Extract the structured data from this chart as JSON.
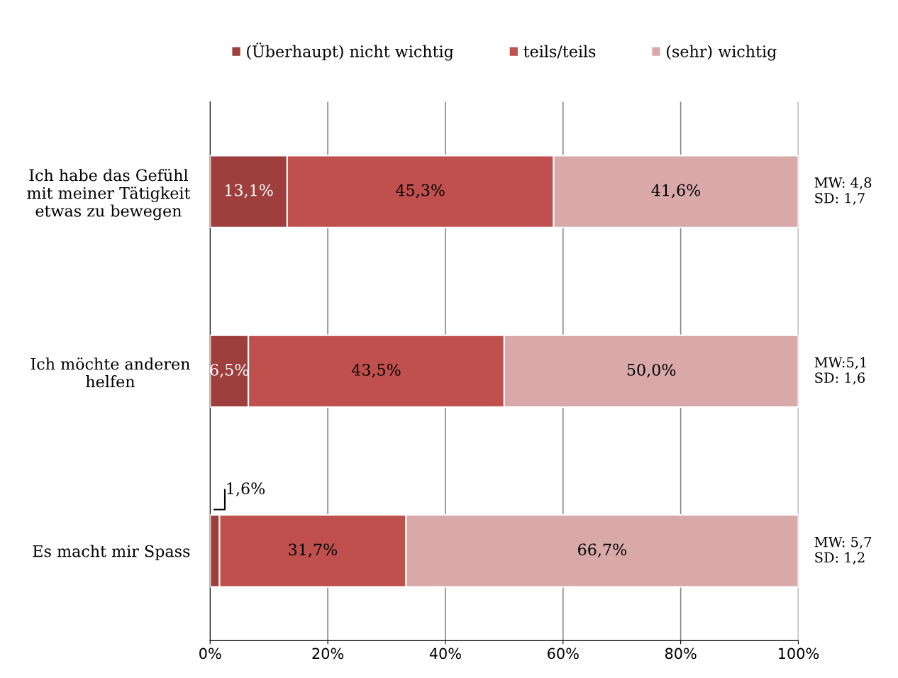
{
  "chart_data": {
    "type": "bar",
    "orientation": "horizontal",
    "stacked": true,
    "categories": [
      "Ich habe das Gefühl\nmit meiner Tätigkeit\netwas zu bewegen",
      "Ich möchte anderen\nhelfen",
      "Es macht mir Spass"
    ],
    "series": [
      {
        "name": "(Überhaupt) nicht wichtig",
        "color": "#9e3f3e",
        "values": [
          13.1,
          6.5,
          1.6
        ],
        "value_labels": [
          "13,1%",
          "6,5%",
          "1,6%"
        ]
      },
      {
        "name": "teils/teils",
        "color": "#c0504d",
        "values": [
          45.3,
          43.5,
          31.7
        ],
        "value_labels": [
          "45,3%",
          "43,5%",
          "31,7%"
        ]
      },
      {
        "name": "(sehr) wichtig",
        "color": "#d9a9a9",
        "values": [
          41.6,
          50.0,
          66.7
        ],
        "value_labels": [
          "41,6%",
          "50,0%",
          "66,7%"
        ]
      }
    ],
    "xlim": [
      0,
      100
    ],
    "xticks": [
      {
        "value": 0,
        "label": "0%"
      },
      {
        "value": 20,
        "label": "20%"
      },
      {
        "value": 40,
        "label": "40%"
      },
      {
        "value": 60,
        "label": "60%"
      },
      {
        "value": 80,
        "label": "80%"
      },
      {
        "value": 100,
        "label": "100%"
      }
    ],
    "grid": "x",
    "legend": "top",
    "annotations": [
      "MW: 4,8\nSD: 1,7",
      "MW:5,1\nSD: 1,6",
      "MW: 5,7\nSD: 1,2"
    ]
  }
}
